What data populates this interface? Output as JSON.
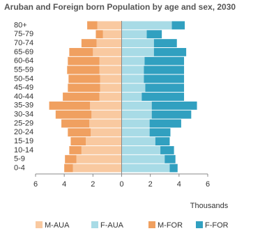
{
  "chart_data": {
    "type": "pyramid",
    "title": "Aruban and Foreign born Population by age and sex, 2030",
    "x_label": "Thousands",
    "categories": [
      "80+",
      "75-79",
      "70-74",
      "65-69",
      "60-64",
      "55-59",
      "50-54",
      "45-49",
      "40-44",
      "35-39",
      "30-34",
      "25-29",
      "20-24",
      "15-19",
      "10-14",
      "5-9",
      "0-4"
    ],
    "series": [
      {
        "name": "M-AUA",
        "color": "#f9c9a0",
        "values": [
          -1.7,
          -1.3,
          -1.75,
          -2.0,
          -1.55,
          -1.55,
          -1.5,
          -1.5,
          -1.55,
          -2.2,
          -2.1,
          -2.25,
          -2.15,
          -2.5,
          -2.8,
          -3.15,
          -3.4
        ]
      },
      {
        "name": "F-AUA",
        "color": "#a8dbe6",
        "values": [
          3.5,
          1.75,
          2.25,
          2.25,
          1.6,
          1.55,
          1.55,
          1.65,
          1.4,
          2.1,
          2.1,
          1.95,
          1.95,
          2.35,
          2.7,
          3.0,
          3.35
        ]
      },
      {
        "name": "M-FOR",
        "color": "#f0a060",
        "values": [
          -0.7,
          -0.5,
          -1.05,
          -1.65,
          -2.2,
          -2.25,
          -2.2,
          -2.25,
          -2.55,
          -2.85,
          -2.5,
          -1.95,
          -1.6,
          -1.05,
          -0.85,
          -0.8,
          -0.6
        ]
      },
      {
        "name": "F-FOR",
        "color": "#31a0c0",
        "values": [
          0.9,
          1.05,
          1.6,
          2.25,
          2.75,
          2.8,
          2.8,
          2.7,
          2.95,
          3.15,
          2.75,
          2.2,
          1.45,
          1.0,
          0.95,
          0.75,
          0.55
        ]
      }
    ],
    "xlim": [
      -6,
      6
    ],
    "xticks": [
      {
        "value": -6,
        "label": "6"
      },
      {
        "value": -4,
        "label": "4"
      },
      {
        "value": -2,
        "label": "2"
      },
      0,
      2,
      4,
      6
    ]
  }
}
